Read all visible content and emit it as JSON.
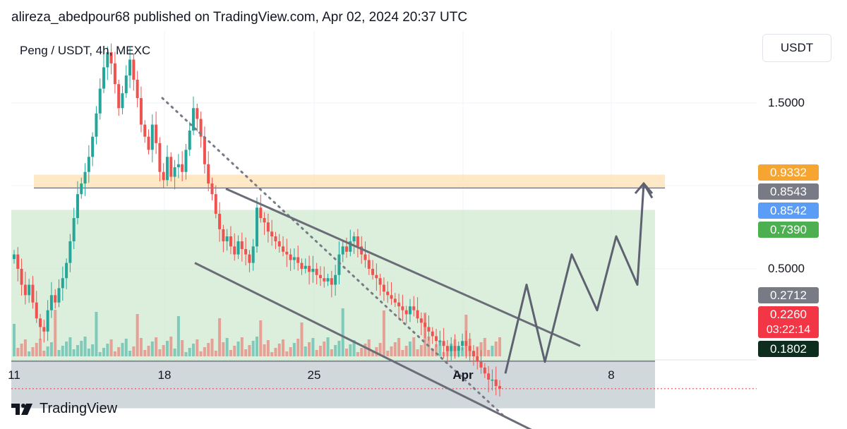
{
  "header": {
    "text": "alireza_abedpour68 published on TradingView.com, Apr 02, 2024 20:37 UTC"
  },
  "chart_info": {
    "symbol": "Peng / USDT, 4h, MEXC"
  },
  "currency_button": {
    "label": "USDT"
  },
  "price_axis": {
    "ticks": [
      "1.5000",
      "0.5000"
    ]
  },
  "time_axis": {
    "ticks": [
      "11",
      "18",
      "25",
      "Apr",
      "8"
    ]
  },
  "price_labels": {
    "l1": {
      "text": "0.9332",
      "color": "#f7a531"
    },
    "l2": {
      "text": "0.8543",
      "color": "#787b86"
    },
    "l3": {
      "text": "0.8542",
      "color": "#5b9cf6"
    },
    "l4": {
      "text": "0.7390",
      "color": "#4caf50"
    },
    "l5": {
      "text": "0.2712",
      "color": "#787b86"
    },
    "l6": {
      "text": "0.2260",
      "color": "#f23645"
    },
    "l7": {
      "text": "0.1802",
      "color": "#0d2e1f"
    }
  },
  "countdown": "03:22:14",
  "footer": {
    "brand": "TradingView"
  },
  "chart_data": {
    "type": "candlestick",
    "title": "Peng / USDT, 4h, MEXC",
    "ylabel": "",
    "y_ticks": [
      1.5,
      0.5
    ],
    "x_ticks": [
      "11",
      "18",
      "25",
      "Apr",
      "8"
    ],
    "key_levels": [
      0.9332,
      0.8543,
      0.8542,
      0.739,
      0.2712,
      0.226,
      0.1802
    ],
    "colors": {
      "up": "#26a69a",
      "down": "#ef5350"
    },
    "candles_close": [
      0.55,
      0.5,
      0.45,
      0.42,
      0.45,
      0.4,
      0.36,
      0.34,
      0.33,
      0.38,
      0.42,
      0.4,
      0.44,
      0.47,
      0.52,
      0.6,
      0.7,
      0.82,
      0.88,
      0.95,
      1.05,
      1.2,
      1.4,
      1.65,
      1.9,
      2.1,
      1.95,
      1.7,
      1.45,
      1.6,
      1.8,
      2.0,
      1.75,
      1.55,
      1.3,
      1.2,
      1.1,
      1.3,
      1.15,
      0.95,
      0.9,
      1.05,
      0.92,
      0.98,
      1.0,
      0.95,
      1.1,
      1.25,
      1.45,
      1.35,
      1.2,
      1.0,
      0.88,
      0.82,
      0.72,
      0.65,
      0.6,
      0.62,
      0.58,
      0.55,
      0.6,
      0.57,
      0.55,
      0.52,
      0.58,
      0.75,
      0.7,
      0.68,
      0.64,
      0.62,
      0.6,
      0.58,
      0.56,
      0.55,
      0.53,
      0.54,
      0.52,
      0.5,
      0.51,
      0.49,
      0.5,
      0.48,
      0.47,
      0.46,
      0.47,
      0.45,
      0.48,
      0.55,
      0.58,
      0.56,
      0.6,
      0.62,
      0.58,
      0.55,
      0.53,
      0.5,
      0.48,
      0.47,
      0.45,
      0.43,
      0.42,
      0.41,
      0.4,
      0.39,
      0.38,
      0.37,
      0.39,
      0.38,
      0.36,
      0.35,
      0.34,
      0.33,
      0.32,
      0.31,
      0.31,
      0.3,
      0.29,
      0.3,
      0.29,
      0.3,
      0.31,
      0.3,
      0.29,
      0.28,
      0.27,
      0.26,
      0.25,
      0.24,
      0.24,
      0.23,
      0.226
    ],
    "projection": [
      0.25,
      0.45,
      0.27,
      0.55,
      0.38,
      0.62,
      0.45,
      0.88,
      0.8
    ],
    "channel": {
      "upper": [
        0.85,
        0.3
      ],
      "lower": [
        0.52,
        0.17
      ]
    },
    "downtrend_line": [
      1.55,
      0.19
    ]
  }
}
